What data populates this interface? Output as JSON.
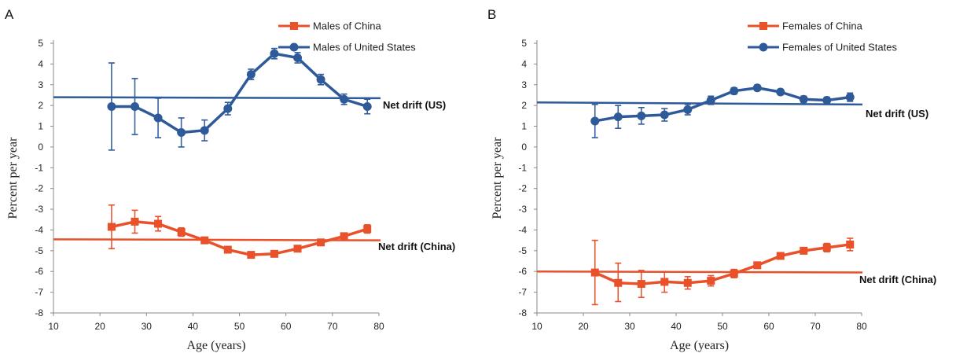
{
  "chart_data": [
    {
      "type": "line",
      "panel_label": "A",
      "xlabel": "Age (years)",
      "ylabel": "Percent per year",
      "xlim": [
        10,
        80
      ],
      "ylim": [
        -8,
        5
      ],
      "xticks": [
        10,
        20,
        30,
        40,
        50,
        60,
        70,
        80
      ],
      "yticks": [
        5,
        4,
        3,
        2,
        1,
        0,
        -1,
        -2,
        -3,
        -4,
        -5,
        -6,
        -7,
        -8
      ],
      "grid": false,
      "legend_position": "top-right",
      "series": [
        {
          "name": "Males of China",
          "marker": "square",
          "color": "#e8512a",
          "x": [
            22.5,
            27.5,
            32.5,
            37.5,
            42.5,
            47.5,
            52.5,
            57.5,
            62.5,
            67.5,
            72.5,
            77.5
          ],
          "y": [
            -3.85,
            -3.6,
            -3.7,
            -4.1,
            -4.5,
            -4.95,
            -5.2,
            -5.15,
            -4.9,
            -4.6,
            -4.3,
            -3.95
          ],
          "err_low": [
            -4.9,
            -4.15,
            -4.05,
            -4.3,
            -4.6,
            -5.05,
            -5.25,
            -5.2,
            -4.98,
            -4.68,
            -4.45,
            -4.15
          ],
          "err_high": [
            -2.8,
            -3.05,
            -3.35,
            -3.9,
            -4.4,
            -4.85,
            -5.15,
            -5.1,
            -4.82,
            -4.52,
            -4.15,
            -3.75
          ]
        },
        {
          "name": "Males of United States",
          "marker": "circle",
          "color": "#2f5a9a",
          "x": [
            22.5,
            27.5,
            32.5,
            37.5,
            42.5,
            47.5,
            52.5,
            57.5,
            62.5,
            67.5,
            72.5,
            77.5
          ],
          "y": [
            1.95,
            1.95,
            1.4,
            0.7,
            0.8,
            1.85,
            3.5,
            4.5,
            4.3,
            3.25,
            2.3,
            1.95
          ],
          "err_low": [
            -0.15,
            0.6,
            0.45,
            0.0,
            0.3,
            1.55,
            3.25,
            4.25,
            4.05,
            3.0,
            2.05,
            1.6
          ],
          "err_high": [
            4.05,
            3.3,
            2.35,
            1.4,
            1.3,
            2.15,
            3.75,
            4.75,
            4.55,
            3.5,
            2.55,
            2.3
          ]
        }
      ],
      "reference_lines": [
        {
          "label": "Net drift (US)",
          "color": "#2f5a9a",
          "y_start": 2.4,
          "y_end": 2.35
        },
        {
          "label": "Net drift (China)",
          "color": "#e8512a",
          "y_start": -4.45,
          "y_end": -4.5
        }
      ]
    },
    {
      "type": "line",
      "panel_label": "B",
      "xlabel": "Age (years)",
      "ylabel": "Percent per year",
      "xlim": [
        10,
        80
      ],
      "ylim": [
        -8,
        5
      ],
      "xticks": [
        10,
        20,
        30,
        40,
        50,
        60,
        70,
        80
      ],
      "yticks": [
        5,
        4,
        3,
        2,
        1,
        0,
        -1,
        -2,
        -3,
        -4,
        -5,
        -6,
        -7,
        -8
      ],
      "grid": false,
      "legend_position": "top-right",
      "series": [
        {
          "name": "Females of China",
          "marker": "square",
          "color": "#e8512a",
          "x": [
            22.5,
            27.5,
            32.5,
            37.5,
            42.5,
            47.5,
            52.5,
            57.5,
            62.5,
            67.5,
            72.5,
            77.5
          ],
          "y": [
            -6.05,
            -6.55,
            -6.6,
            -6.5,
            -6.55,
            -6.45,
            -6.1,
            -5.7,
            -5.25,
            -5.0,
            -4.85,
            -4.7
          ],
          "err_low": [
            -7.6,
            -7.45,
            -7.25,
            -7.0,
            -6.85,
            -6.7,
            -6.3,
            -5.85,
            -5.4,
            -5.15,
            -5.05,
            -5.0
          ],
          "err_high": [
            -4.5,
            -5.6,
            -5.95,
            -6.0,
            -6.25,
            -6.2,
            -5.9,
            -5.55,
            -5.1,
            -4.85,
            -4.65,
            -4.4
          ]
        },
        {
          "name": "Females of United States",
          "marker": "circle",
          "color": "#2f5a9a",
          "x": [
            22.5,
            27.5,
            32.5,
            37.5,
            42.5,
            47.5,
            52.5,
            57.5,
            62.5,
            67.5,
            72.5,
            77.5
          ],
          "y": [
            1.25,
            1.45,
            1.5,
            1.55,
            1.8,
            2.25,
            2.7,
            2.85,
            2.65,
            2.3,
            2.25,
            2.4
          ],
          "err_low": [
            0.45,
            0.9,
            1.1,
            1.25,
            1.55,
            2.05,
            2.55,
            2.72,
            2.52,
            2.15,
            2.1,
            2.2
          ],
          "err_high": [
            2.05,
            2.0,
            1.9,
            1.85,
            2.05,
            2.45,
            2.85,
            2.98,
            2.78,
            2.45,
            2.4,
            2.6
          ]
        }
      ],
      "reference_lines": [
        {
          "label": "Net drift (US)",
          "color": "#2f5a9a",
          "y_start": 2.15,
          "y_end": 2.05
        },
        {
          "label": "Net drift (China)",
          "color": "#e8512a",
          "y_start": -6.0,
          "y_end": -6.05
        }
      ]
    }
  ]
}
